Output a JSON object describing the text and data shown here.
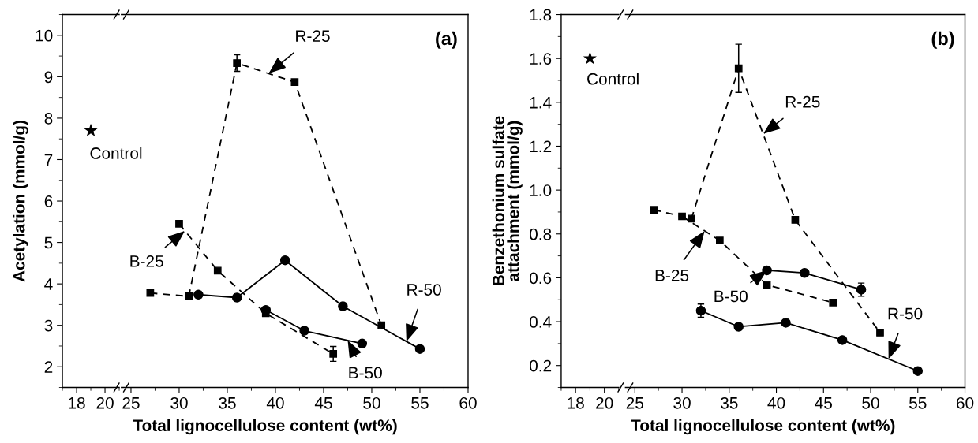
{
  "chart_data": [
    {
      "type": "scatter",
      "ylabel": "Acetylation (mmol/g)",
      "xlim": [
        17,
        21
      ],
      "xticks": [
        18,
        20
      ],
      "ylim": [
        1.5,
        10.5
      ],
      "yticks": [
        2,
        3,
        4,
        5,
        6,
        7,
        8,
        9,
        10
      ],
      "grid": false,
      "legend": false,
      "series": [
        {
          "color": "#000000",
          "marker": "star",
          "x": [
            19
          ],
          "values": [
            7.7
          ]
        }
      ],
      "annotations": [
        {
          "text": "Control",
          "x": 19,
          "y": 7.7
        }
      ]
    },
    {
      "type": "line",
      "xlabel": "Total lignocellulose content (wt%)",
      "xlim": [
        24,
        60
      ],
      "xticks": [
        25,
        30,
        35,
        40,
        45,
        50,
        55,
        60
      ],
      "ylim": [
        1.5,
        10.5
      ],
      "tick_labels": "x",
      "grid": false,
      "legend": false,
      "series": [
        {
          "color": "#000000",
          "marker": "square",
          "line_style": "dashed",
          "x": [
            27,
            31,
            36,
            42,
            51
          ],
          "values": [
            3.78,
            3.7,
            9.33,
            8.87,
            3.0
          ],
          "errors": [
            null,
            null,
            0.2,
            null,
            null
          ]
        },
        {
          "color": "#000000",
          "marker": "square",
          "line_style": "dashed",
          "x": [
            30,
            34,
            39,
            46
          ],
          "values": [
            5.45,
            4.32,
            3.29,
            2.31
          ],
          "errors": [
            null,
            null,
            null,
            0.18
          ]
        },
        {
          "color": "#000000",
          "marker": "circle",
          "line_style": "solid",
          "x": [
            32,
            36,
            41,
            47,
            55
          ],
          "values": [
            3.74,
            3.67,
            4.57,
            3.46,
            2.43
          ]
        },
        {
          "color": "#000000",
          "marker": "circle",
          "line_style": "solid",
          "x": [
            39,
            43,
            49
          ],
          "values": [
            3.37,
            2.87,
            2.56
          ]
        }
      ],
      "annotations": [
        "(a)",
        {
          "text": "R-25",
          "x": 39.3,
          "y": 9.08
        },
        {
          "text": "B-25",
          "x": 30.6,
          "y": 5.28
        },
        {
          "text": "R-50",
          "x": 53.6,
          "y": 2.61
        },
        {
          "text": "B-50",
          "x": 47.5,
          "y": 2.64
        }
      ]
    },
    {
      "type": "scatter",
      "ylabel": "Benzethonium sulfate\nattachment (mmol/g)",
      "xlim": [
        17,
        21
      ],
      "xticks": [
        18,
        20
      ],
      "ylim": [
        0.1,
        1.8
      ],
      "yticks": [
        0.2,
        0.4,
        0.6,
        0.8,
        {
          "value": 1,
          "label": "1.0"
        },
        1.2,
        1.4,
        1.6,
        1.8
      ],
      "grid": false,
      "legend": false,
      "series": [
        {
          "color": "#000000",
          "marker": "star",
          "x": [
            19
          ],
          "values": [
            1.6
          ]
        }
      ],
      "annotations": [
        {
          "text": "Control",
          "x": 19,
          "y": 1.6
        }
      ]
    },
    {
      "type": "line",
      "xlabel": "Total lignocellulose content (wt%)",
      "xlim": [
        24,
        60
      ],
      "xticks": [
        25,
        30,
        35,
        40,
        45,
        50,
        55,
        60
      ],
      "ylim": [
        0.1,
        1.8
      ],
      "tick_labels": "x",
      "grid": false,
      "legend": false,
      "series": [
        {
          "color": "#000000",
          "marker": "square",
          "line_style": "dashed",
          "x": [
            27,
            31,
            36,
            42,
            51
          ],
          "values": [
            0.91,
            0.87,
            1.555,
            0.864,
            0.35
          ],
          "errors": [
            null,
            null,
            0.11,
            null,
            null
          ]
        },
        {
          "color": "#000000",
          "marker": "square",
          "line_style": "dashed",
          "x": [
            30,
            34,
            39,
            46
          ],
          "values": [
            0.88,
            0.77,
            0.568,
            0.487
          ]
        },
        {
          "color": "#000000",
          "marker": "circle",
          "line_style": "solid",
          "x": [
            32,
            36,
            41,
            47,
            55
          ],
          "values": [
            0.45,
            0.377,
            0.395,
            0.316,
            0.175
          ],
          "errors": [
            0.03,
            null,
            null,
            null,
            null
          ]
        },
        {
          "color": "#000000",
          "marker": "circle",
          "line_style": "solid",
          "x": [
            39,
            43,
            49
          ],
          "values": [
            0.634,
            0.622,
            0.546
          ],
          "errors": [
            null,
            null,
            0.03
          ]
        }
      ],
      "annotations": [
        "(b)",
        {
          "text": "R-25",
          "x": 38.6,
          "y": 1.256
        },
        {
          "text": "B-25",
          "x": 32.4,
          "y": 0.814
        },
        {
          "text": "B-50",
          "x": 39,
          "y": 0.634
        },
        {
          "text": "R-50",
          "x": 51.9,
          "y": 0.23
        }
      ]
    }
  ]
}
